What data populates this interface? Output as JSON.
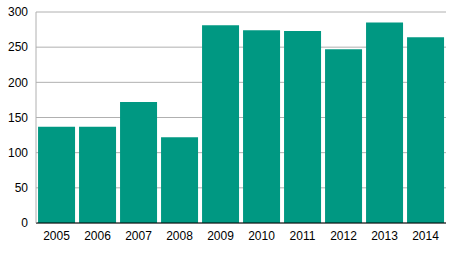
{
  "chart_data": {
    "type": "bar",
    "categories": [
      "2005",
      "2006",
      "2007",
      "2008",
      "2009",
      "2010",
      "2011",
      "2012",
      "2013",
      "2014"
    ],
    "values": [
      137,
      137,
      172,
      122,
      281,
      274,
      273,
      247,
      285,
      264
    ],
    "color": "#009882",
    "ylim": [
      0,
      300
    ],
    "yticks": [
      0,
      50,
      100,
      150,
      200,
      250,
      300
    ],
    "grid": true
  }
}
